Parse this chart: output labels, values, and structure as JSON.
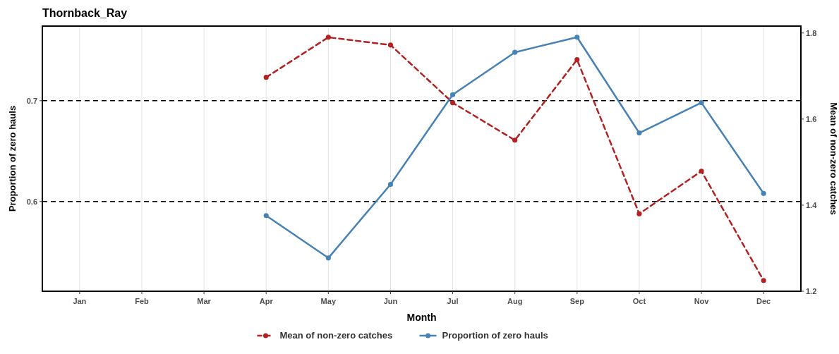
{
  "chart_data": {
    "type": "line",
    "title": "Thornback_Ray",
    "xlabel": "Month",
    "ylabel": "Proportion of zero hauls",
    "y2label": "Mean of non-zero catches",
    "categories": [
      "Jan",
      "Feb",
      "Mar",
      "Apr",
      "May",
      "Jun",
      "Jul",
      "Aug",
      "Sep",
      "Oct",
      "Nov",
      "Dec"
    ],
    "series": [
      {
        "name": "Mean of non-zero catches",
        "color": "#b22222",
        "axis": "y2",
        "line_style": "dashed",
        "values": [
          null,
          null,
          null,
          1.697,
          1.79,
          1.772,
          1.638,
          1.551,
          1.738,
          1.38,
          1.479,
          1.225
        ]
      },
      {
        "name": "Proportion of zero hauls",
        "color": "#4682b4",
        "line_style": "solid",
        "values": [
          null,
          null,
          null,
          0.586,
          0.544,
          0.617,
          0.706,
          0.748,
          0.763,
          0.668,
          0.698,
          0.608
        ]
      }
    ],
    "ylim": [
      0.511,
      0.774
    ],
    "yticks": [
      0.6,
      0.7
    ],
    "y2lim": [
      1.2,
      1.816
    ],
    "y2ticks": [
      1.2,
      1.4,
      1.6,
      1.8
    ],
    "ref_lines": [
      {
        "axis": "y",
        "value": 0.7,
        "color": "#000000",
        "line_style": "dashed"
      },
      {
        "axis": "y",
        "value": 0.6,
        "color": "#000000",
        "line_style": "dashed"
      }
    ],
    "grid": "x",
    "legend": "bottom",
    "marker": "circle"
  }
}
